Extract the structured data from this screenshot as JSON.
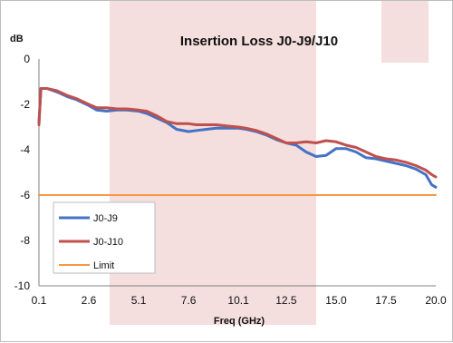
{
  "chart_data": {
    "type": "line",
    "title": "Insertion Loss J0-J9/J10",
    "xlabel": "Freq (GHz)",
    "ylabel": "dB",
    "xlim": [
      0.1,
      20.0
    ],
    "ylim": [
      -10,
      0
    ],
    "x_ticks": [
      "0.1",
      "2.6",
      "5.1",
      "7.6",
      "10.1",
      "12.5",
      "15.0",
      "17.5",
      "20.0"
    ],
    "y_ticks": [
      "0",
      "-2",
      "-4",
      "-6",
      "-8",
      "-10"
    ],
    "grid": false,
    "legend_position": "bottom-left",
    "series": [
      {
        "name": "J0-J9",
        "color": "#4472C4",
        "x": [
          0.1,
          0.2,
          0.5,
          1.0,
          1.5,
          2.0,
          2.6,
          3.0,
          3.5,
          4.0,
          4.5,
          5.1,
          5.5,
          6.0,
          6.5,
          7.0,
          7.6,
          8.0,
          8.5,
          9.0,
          9.5,
          10.1,
          10.5,
          11.0,
          11.5,
          12.0,
          12.5,
          13.0,
          13.5,
          14.0,
          14.5,
          15.0,
          15.5,
          16.0,
          16.5,
          17.0,
          17.5,
          18.0,
          18.5,
          19.0,
          19.5,
          19.8,
          20.0
        ],
        "y": [
          -2.8,
          -1.3,
          -1.3,
          -1.45,
          -1.65,
          -1.8,
          -2.05,
          -2.25,
          -2.3,
          -2.25,
          -2.25,
          -2.3,
          -2.4,
          -2.6,
          -2.8,
          -3.1,
          -3.2,
          -3.15,
          -3.1,
          -3.05,
          -3.05,
          -3.05,
          -3.1,
          -3.2,
          -3.35,
          -3.55,
          -3.7,
          -3.8,
          -4.1,
          -4.3,
          -4.25,
          -3.95,
          -3.95,
          -4.1,
          -4.35,
          -4.4,
          -4.5,
          -4.6,
          -4.7,
          -4.85,
          -5.1,
          -5.55,
          -5.65
        ]
      },
      {
        "name": "J0-J10",
        "color": "#C0504D",
        "x": [
          0.1,
          0.2,
          0.5,
          1.0,
          1.5,
          2.0,
          2.6,
          3.0,
          3.5,
          4.0,
          4.5,
          5.1,
          5.5,
          6.0,
          6.5,
          7.0,
          7.6,
          8.0,
          8.5,
          9.0,
          9.5,
          10.1,
          10.5,
          11.0,
          11.5,
          12.0,
          12.5,
          13.0,
          13.5,
          14.0,
          14.5,
          15.0,
          15.5,
          16.0,
          16.5,
          17.0,
          17.5,
          18.0,
          18.5,
          19.0,
          19.5,
          19.8,
          20.0
        ],
        "y": [
          -2.9,
          -1.3,
          -1.3,
          -1.4,
          -1.6,
          -1.75,
          -2.0,
          -2.15,
          -2.15,
          -2.2,
          -2.2,
          -2.25,
          -2.3,
          -2.5,
          -2.75,
          -2.85,
          -2.85,
          -2.9,
          -2.9,
          -2.9,
          -2.95,
          -3.0,
          -3.05,
          -3.15,
          -3.3,
          -3.5,
          -3.7,
          -3.7,
          -3.65,
          -3.7,
          -3.6,
          -3.65,
          -3.8,
          -3.9,
          -4.1,
          -4.3,
          -4.4,
          -4.45,
          -4.55,
          -4.7,
          -4.9,
          -5.1,
          -5.2
        ]
      },
      {
        "name": "Limit",
        "color": "#F79646",
        "x": [
          0.1,
          20.0
        ],
        "y": [
          -6.0,
          -6.0
        ]
      }
    ]
  }
}
